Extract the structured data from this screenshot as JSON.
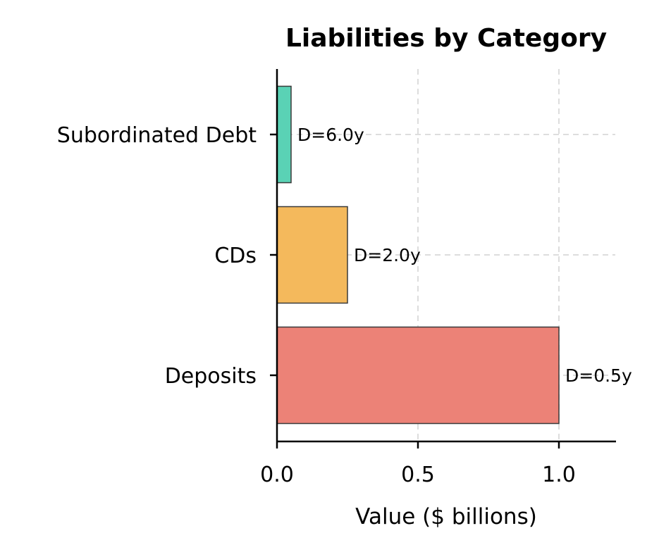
{
  "chart_data": {
    "type": "bar",
    "orientation": "horizontal",
    "title": "Liabilities by Category",
    "xlabel": "Value ($ billions)",
    "ylabel": "",
    "categories": [
      "Deposits",
      "CDs",
      "Subordinated Debt"
    ],
    "values": [
      1.0,
      0.25,
      0.05
    ],
    "annotations": [
      "D=0.5y",
      "D=2.0y",
      "D=6.0y"
    ],
    "colors": [
      "#ec8277",
      "#f4b95c",
      "#5ad2b5"
    ],
    "xlim": [
      0,
      1.2
    ],
    "xticks": [
      "0.0",
      "0.5",
      "1.0"
    ],
    "grid": true,
    "legend": null
  }
}
